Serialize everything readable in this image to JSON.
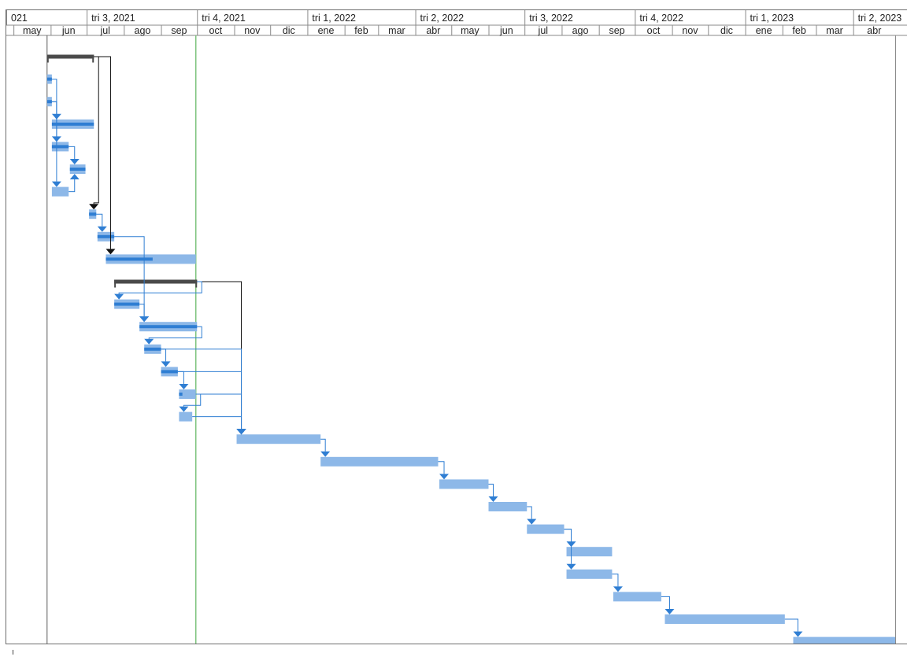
{
  "chart_data": {
    "type": "gantt",
    "x_range": [
      "2021-04-25",
      "2023-05-06"
    ],
    "status_date": "2021-09-30",
    "timescale": {
      "quarters": [
        {
          "label": "021",
          "start": "2021-04-01"
        },
        {
          "label": "tri 3, 2021",
          "start": "2021-07-01"
        },
        {
          "label": "tri 4, 2021",
          "start": "2021-10-01"
        },
        {
          "label": "tri 1, 2022",
          "start": "2022-01-01"
        },
        {
          "label": "tri 2, 2022",
          "start": "2022-04-01"
        },
        {
          "label": "tri 3, 2022",
          "start": "2022-07-01"
        },
        {
          "label": "tri 4, 2022",
          "start": "2022-10-01"
        },
        {
          "label": "tri 1, 2023",
          "start": "2023-01-01"
        },
        {
          "label": "tri 2, 2023",
          "start": "2023-04-01"
        }
      ],
      "months": [
        {
          "label": "may",
          "start": "2021-05-01"
        },
        {
          "label": "jun",
          "start": "2021-06-01"
        },
        {
          "label": "jul",
          "start": "2021-07-01"
        },
        {
          "label": "ago",
          "start": "2021-08-01"
        },
        {
          "label": "sep",
          "start": "2021-09-01"
        },
        {
          "label": "oct",
          "start": "2021-10-01"
        },
        {
          "label": "nov",
          "start": "2021-11-01"
        },
        {
          "label": "dic",
          "start": "2021-12-01"
        },
        {
          "label": "ene",
          "start": "2022-01-01"
        },
        {
          "label": "feb",
          "start": "2022-02-01"
        },
        {
          "label": "mar",
          "start": "2022-03-01"
        },
        {
          "label": "abr",
          "start": "2022-04-01"
        },
        {
          "label": "may",
          "start": "2022-05-01"
        },
        {
          "label": "jun",
          "start": "2022-06-01"
        },
        {
          "label": "jul",
          "start": "2022-07-01"
        },
        {
          "label": "ago",
          "start": "2022-08-01"
        },
        {
          "label": "sep",
          "start": "2022-09-01"
        },
        {
          "label": "oct",
          "start": "2022-10-01"
        },
        {
          "label": "nov",
          "start": "2022-11-01"
        },
        {
          "label": "dic",
          "start": "2022-12-01"
        },
        {
          "label": "ene",
          "start": "2023-01-01"
        },
        {
          "label": "feb",
          "start": "2023-02-01"
        },
        {
          "label": "mar",
          "start": "2023-03-01"
        },
        {
          "label": "abr",
          "start": "2023-04-01"
        }
      ]
    },
    "tasks": [
      {
        "row": 0,
        "kind": "summary",
        "start": "2021-05-29",
        "end": "2021-07-07"
      },
      {
        "row": 1,
        "kind": "task",
        "start": "2021-05-29",
        "end": "2021-06-02",
        "progress": 1.0
      },
      {
        "row": 2,
        "kind": "task",
        "start": "2021-05-29",
        "end": "2021-06-02",
        "progress": 1.0
      },
      {
        "row": 3,
        "kind": "task",
        "start": "2021-06-02",
        "end": "2021-07-07",
        "progress": 1.0
      },
      {
        "row": 4,
        "kind": "task",
        "start": "2021-06-02",
        "end": "2021-06-16",
        "progress": 1.0
      },
      {
        "row": 5,
        "kind": "task",
        "start": "2021-06-17",
        "end": "2021-06-30",
        "progress": 1.0
      },
      {
        "row": 6,
        "kind": "task",
        "start": "2021-06-02",
        "end": "2021-06-16",
        "progress": 0.0
      },
      {
        "row": 7,
        "kind": "task",
        "start": "2021-07-03",
        "end": "2021-07-09",
        "progress": 1.0
      },
      {
        "row": 8,
        "kind": "task",
        "start": "2021-07-10",
        "end": "2021-07-24",
        "progress": 1.0
      },
      {
        "row": 9,
        "kind": "task",
        "start": "2021-07-17",
        "end": "2021-09-30",
        "progress": 0.52
      },
      {
        "row": 10,
        "kind": "summary",
        "start": "2021-07-24",
        "end": "2021-10-01"
      },
      {
        "row": 11,
        "kind": "task",
        "start": "2021-07-24",
        "end": "2021-08-14",
        "progress": 1.0
      },
      {
        "row": 12,
        "kind": "task",
        "start": "2021-08-14",
        "end": "2021-10-01",
        "progress": 1.0
      },
      {
        "row": 13,
        "kind": "task",
        "start": "2021-08-18",
        "end": "2021-09-01",
        "progress": 1.0
      },
      {
        "row": 14,
        "kind": "task",
        "start": "2021-09-01",
        "end": "2021-09-15",
        "progress": 1.0
      },
      {
        "row": 15,
        "kind": "task",
        "start": "2021-09-16",
        "end": "2021-09-30",
        "progress": 0.2
      },
      {
        "row": 16,
        "kind": "task",
        "start": "2021-09-16",
        "end": "2021-09-27",
        "progress": 0.0
      },
      {
        "row": 17,
        "kind": "task",
        "start": "2021-11-03",
        "end": "2022-01-12",
        "progress": 0.0
      },
      {
        "row": 18,
        "kind": "task",
        "start": "2022-01-12",
        "end": "2022-04-20",
        "progress": 0.0
      },
      {
        "row": 19,
        "kind": "task",
        "start": "2022-04-21",
        "end": "2022-06-01",
        "progress": 0.0
      },
      {
        "row": 20,
        "kind": "task",
        "start": "2022-06-01",
        "end": "2022-07-03",
        "progress": 0.0
      },
      {
        "row": 21,
        "kind": "task",
        "start": "2022-07-03",
        "end": "2022-08-03",
        "progress": 0.0
      },
      {
        "row": 22,
        "kind": "task",
        "start": "2022-08-05",
        "end": "2022-09-12",
        "progress": 0.0
      },
      {
        "row": 23,
        "kind": "task",
        "start": "2022-08-05",
        "end": "2022-09-12",
        "progress": 0.0
      },
      {
        "row": 24,
        "kind": "task",
        "start": "2022-09-13",
        "end": "2022-10-23",
        "progress": 0.0
      },
      {
        "row": 25,
        "kind": "task",
        "start": "2022-10-26",
        "end": "2023-02-03",
        "progress": 0.0
      },
      {
        "row": 26,
        "kind": "task",
        "start": "2023-02-10",
        "end": "2023-05-06",
        "progress": 0.0
      }
    ],
    "links": [
      {
        "from": 0,
        "to": 7,
        "color": "black"
      },
      {
        "from": 0,
        "to": 9,
        "color": "black"
      },
      {
        "from": 1,
        "to": 3
      },
      {
        "from": 2,
        "to": 4
      },
      {
        "from": 2,
        "to": 6
      },
      {
        "from": 4,
        "to": 5
      },
      {
        "from": 6,
        "to": 5
      },
      {
        "from": 7,
        "to": 8
      },
      {
        "from": 8,
        "to": 12
      },
      {
        "from": 10,
        "to": 17,
        "color": "black"
      },
      {
        "from": 10,
        "to": 11
      },
      {
        "from": 11,
        "to": 12
      },
      {
        "from": 12,
        "to": 13
      },
      {
        "from": 13,
        "to": 14
      },
      {
        "from": 13,
        "to": 17
      },
      {
        "from": 14,
        "to": 15
      },
      {
        "from": 14,
        "to": 17
      },
      {
        "from": 15,
        "to": 16
      },
      {
        "from": 15,
        "to": 17
      },
      {
        "from": 16,
        "to": 17
      },
      {
        "from": 17,
        "to": 18
      },
      {
        "from": 18,
        "to": 19
      },
      {
        "from": 19,
        "to": 20
      },
      {
        "from": 20,
        "to": 21
      },
      {
        "from": 21,
        "to": 22
      },
      {
        "from": 21,
        "to": 23
      },
      {
        "from": 23,
        "to": 24
      },
      {
        "from": 24,
        "to": 25
      },
      {
        "from": 25,
        "to": 26
      }
    ]
  },
  "colors": {
    "bar": "#8db8e8",
    "progress": "#2f7ed3",
    "link": "#2f7ed3",
    "summary": "#4a4a4a",
    "status_line": "#7dc47d",
    "grid": "#8a8a8a",
    "text": "#222222"
  }
}
